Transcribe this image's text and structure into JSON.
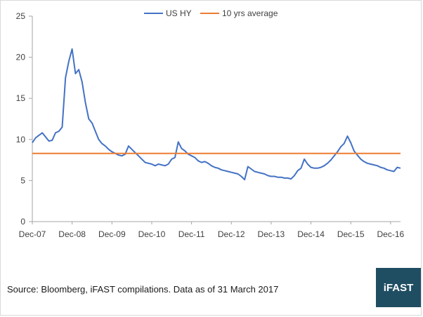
{
  "chart_data": {
    "type": "line",
    "title": "",
    "xlabel": "",
    "ylabel": "",
    "ylim": [
      0,
      25
    ],
    "yticks": [
      0,
      5,
      10,
      15,
      20,
      25
    ],
    "xlim": [
      "2007-12",
      "2017-03"
    ],
    "xticks": [
      "Dec-07",
      "Dec-08",
      "Dec-09",
      "Dec-10",
      "Dec-11",
      "Dec-12",
      "Dec-13",
      "Dec-14",
      "Dec-15",
      "Dec-16"
    ],
    "grid": false,
    "legend_position": "top",
    "series": [
      {
        "name": "US HY",
        "color": "#4472c4",
        "x": [
          "2007-12",
          "2008-01",
          "2008-02",
          "2008-03",
          "2008-04",
          "2008-05",
          "2008-06",
          "2008-07",
          "2008-08",
          "2008-09",
          "2008-10",
          "2008-11",
          "2008-12",
          "2009-01",
          "2009-02",
          "2009-03",
          "2009-04",
          "2009-05",
          "2009-06",
          "2009-07",
          "2009-08",
          "2009-09",
          "2009-10",
          "2009-11",
          "2009-12",
          "2010-01",
          "2010-02",
          "2010-03",
          "2010-04",
          "2010-05",
          "2010-06",
          "2010-07",
          "2010-08",
          "2010-09",
          "2010-10",
          "2010-11",
          "2010-12",
          "2011-01",
          "2011-02",
          "2011-03",
          "2011-04",
          "2011-05",
          "2011-06",
          "2011-07",
          "2011-08",
          "2011-09",
          "2011-10",
          "2011-11",
          "2011-12",
          "2012-01",
          "2012-02",
          "2012-03",
          "2012-04",
          "2012-05",
          "2012-06",
          "2012-07",
          "2012-08",
          "2012-09",
          "2012-10",
          "2012-11",
          "2012-12",
          "2013-01",
          "2013-02",
          "2013-03",
          "2013-04",
          "2013-05",
          "2013-06",
          "2013-07",
          "2013-08",
          "2013-09",
          "2013-10",
          "2013-11",
          "2013-12",
          "2014-01",
          "2014-02",
          "2014-03",
          "2014-04",
          "2014-05",
          "2014-06",
          "2014-07",
          "2014-08",
          "2014-09",
          "2014-10",
          "2014-11",
          "2014-12",
          "2015-01",
          "2015-02",
          "2015-03",
          "2015-04",
          "2015-05",
          "2015-06",
          "2015-07",
          "2015-08",
          "2015-09",
          "2015-10",
          "2015-11",
          "2015-12",
          "2016-01",
          "2016-02",
          "2016-03",
          "2016-04",
          "2016-05",
          "2016-06",
          "2016-07",
          "2016-08",
          "2016-09",
          "2016-10",
          "2016-11",
          "2016-12",
          "2017-01",
          "2017-02",
          "2017-03"
        ],
        "values": [
          9.6,
          10.2,
          10.5,
          10.8,
          10.3,
          9.8,
          9.9,
          10.8,
          11.0,
          11.5,
          17.5,
          19.5,
          21.0,
          18.0,
          18.5,
          17.0,
          14.5,
          12.5,
          12.0,
          11.0,
          10.0,
          9.5,
          9.2,
          8.8,
          8.5,
          8.3,
          8.1,
          8.0,
          8.2,
          9.2,
          8.8,
          8.4,
          8.0,
          7.6,
          7.2,
          7.1,
          7.0,
          6.8,
          7.0,
          6.9,
          6.8,
          7.0,
          7.6,
          7.8,
          9.7,
          8.9,
          8.6,
          8.2,
          8.0,
          7.8,
          7.4,
          7.2,
          7.3,
          7.1,
          6.8,
          6.6,
          6.5,
          6.3,
          6.2,
          6.1,
          6.0,
          5.9,
          5.8,
          5.5,
          5.1,
          6.7,
          6.4,
          6.1,
          6.0,
          5.9,
          5.8,
          5.6,
          5.5,
          5.5,
          5.4,
          5.4,
          5.3,
          5.3,
          5.2,
          5.6,
          6.2,
          6.5,
          7.6,
          7.0,
          6.6,
          6.5,
          6.5,
          6.6,
          6.8,
          7.1,
          7.5,
          8.0,
          8.5,
          9.1,
          9.5,
          10.4,
          9.6,
          8.6,
          8.1,
          7.6,
          7.3,
          7.1,
          7.0,
          6.9,
          6.8,
          6.6,
          6.5,
          6.3,
          6.2,
          6.1,
          6.6,
          6.5
        ]
      },
      {
        "name": "10 yrs average",
        "color": "#ed7d31",
        "x": [
          "2007-12",
          "2017-03"
        ],
        "values": [
          8.3,
          8.3
        ]
      }
    ]
  },
  "footer": {
    "source": "Source: Bloomberg, iFAST compilations. Data as of 31 March 2017",
    "logo_text": "iFAST"
  },
  "colors": {
    "axis": "#a6a6a6",
    "tick_text": "#404040",
    "logo_bg": "#1f4e63"
  }
}
